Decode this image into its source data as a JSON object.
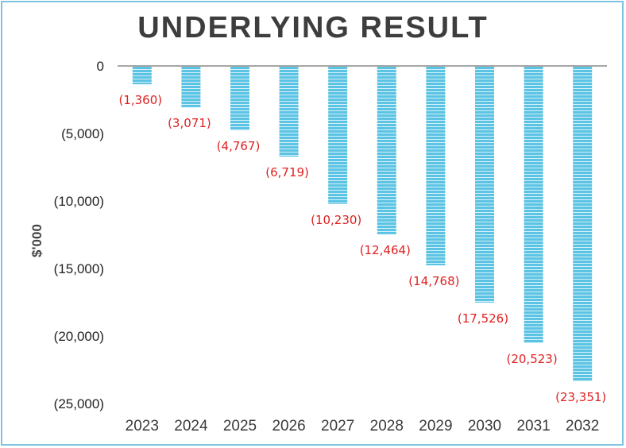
{
  "chart_data": {
    "type": "bar",
    "title": "UNDERLYING RESULT",
    "ylabel": "$'000",
    "xlabel": "",
    "categories": [
      "2023",
      "2024",
      "2025",
      "2026",
      "2027",
      "2028",
      "2029",
      "2030",
      "2031",
      "2032"
    ],
    "values": [
      -1360,
      -3071,
      -4767,
      -6719,
      -10230,
      -12464,
      -14768,
      -17526,
      -20523,
      -23351
    ],
    "data_labels": [
      "(1,360)",
      "(3,071)",
      "(4,767)",
      "(6,719)",
      "(10,230)",
      "(12,464)",
      "(14,768)",
      "(17,526)",
      "(20,523)",
      "(23,351)"
    ],
    "y_ticks": [
      0,
      -5000,
      -10000,
      -15000,
      -20000,
      -25000
    ],
    "y_tick_labels": [
      "0",
      "(5,000)",
      "(10,000)",
      "(15,000)",
      "(20,000)",
      "(25,000)"
    ],
    "ylim": [
      -25000,
      0
    ],
    "grid": false,
    "legend": "none",
    "colors": {
      "bar": "#5bc3e3",
      "bar_stripe": "#ffffff",
      "data_label": "#e02020",
      "frame": "#7fc4de",
      "zero_line": "#a6a6a6"
    }
  }
}
